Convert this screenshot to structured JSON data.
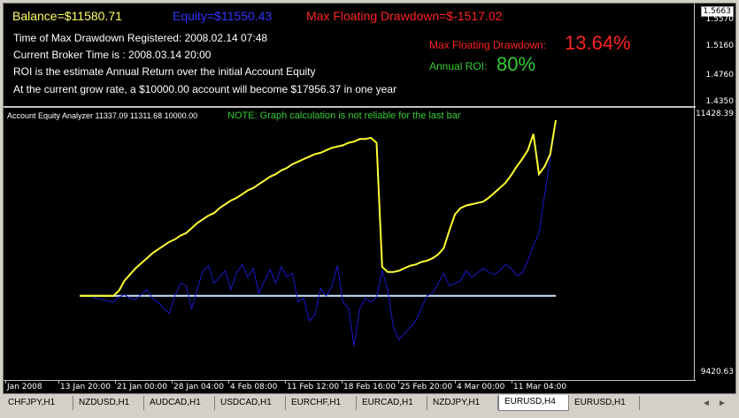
{
  "header": {
    "balance": "Balance=$11580.71",
    "equity": "Equity=$11550.43",
    "max_floating_drawdown": "Max Floating Drawdown=$-1517.02",
    "time_max_drawdown": "Time of Max Drawdown Registered: 2008.02.14 07:48",
    "broker_time": "Current Broker Time is : 2008.03.14 20:00",
    "roi_note": "ROI is the estimate Annual Return over the initial Account Equity",
    "grow_note": "At the current grow rate, a $10000.00 account will become $17956.37 in one year",
    "drawdown_pct_label": "Max Floating Drawdown:",
    "drawdown_pct_value": "13.64%",
    "roi_label": "Annual ROI:",
    "roi_value": "80%"
  },
  "price_scale_top": [
    "1.5663",
    "1.5570",
    "1.5160",
    "1.4760",
    "1.4350"
  ],
  "price_scale_bottom": [
    "11428.39",
    "9420.63"
  ],
  "indicator": {
    "label": "Account Equity Analyzer 11337.09 11311.68 10000.00",
    "note": "NOTE: Graph calculation is not reliable for the last bar"
  },
  "time_axis": [
    "Jan 2008",
    "13 Jan 20:00",
    "21 Jan 00:00",
    "28 Jan 04:00",
    "4 Feb 08:00",
    "11 Feb 12:00",
    "18 Feb 16:00",
    "25 Feb 20:00",
    "4 Mar 00:00",
    "11 Mar 04:00"
  ],
  "colors": {
    "balance_text": "#ffff66",
    "equity_text": "#3333ff",
    "drawdown_text": "#ff2222",
    "roi_text": "#33cc33",
    "balance_line": "#ffff33",
    "equity_line": "#1a1acc",
    "baseline": "#cce6ff"
  },
  "chart_data": {
    "type": "line",
    "y_range": [
      9420.63,
      11428.39
    ],
    "baseline": 10000.0,
    "series": [
      {
        "values": [
          10000,
          10000,
          10000,
          10000,
          10000,
          10000,
          10000,
          10040,
          10120,
          10170,
          10220,
          10260,
          10300,
          10340,
          10370,
          10400,
          10430,
          10450,
          10480,
          10500,
          10540,
          10580,
          10610,
          10640,
          10660,
          10700,
          10730,
          10760,
          10780,
          10810,
          10840,
          10860,
          10890,
          10920,
          10950,
          10970,
          11000,
          11020,
          11050,
          11070,
          11090,
          11110,
          11130,
          11140,
          11160,
          11180,
          11190,
          11200,
          11220,
          11230,
          11250,
          11250,
          11260,
          11220,
          10230,
          10190,
          10190,
          10200,
          10220,
          10240,
          10250,
          10270,
          10280,
          10300,
          10330,
          10380,
          10520,
          10650,
          10700,
          10720,
          10730,
          10740,
          10750,
          10780,
          10820,
          10860,
          10900,
          10960,
          11030,
          11090,
          11160,
          11290,
          10970,
          11030,
          11130,
          11400
        ]
      },
      {
        "values": [
          10000,
          10000,
          10000,
          9980,
          9970,
          9960,
          9950,
          9990,
          10010,
          9980,
          9970,
          10010,
          10050,
          9980,
          9950,
          9900,
          9860,
          10000,
          10100,
          10080,
          9900,
          10050,
          10200,
          10240,
          10100,
          10150,
          10200,
          10050,
          10180,
          10250,
          10150,
          10220,
          10020,
          10120,
          10210,
          10100,
          10230,
          10150,
          10180,
          9950,
          9980,
          9800,
          9850,
          10060,
          10000,
          10070,
          10240,
          9950,
          9900,
          9600,
          9900,
          9980,
          9950,
          9990,
          10200,
          10050,
          9750,
          9650,
          9700,
          9750,
          9800,
          9900,
          10000,
          10020,
          10100,
          10180,
          10080,
          10100,
          10120,
          10200,
          10150,
          10180,
          10220,
          10190,
          10170,
          10200,
          10250,
          10220,
          10160,
          10180,
          10280,
          10400,
          10500,
          10800,
          11100,
          11400
        ]
      }
    ]
  },
  "tabs": [
    "CHFJPY,H1",
    "NZDUSD,H1",
    "AUDCAD,H1",
    "USDCAD,H1",
    "EURCHF,H1",
    "EURCAD,H1",
    "NZDJPY,H1",
    "EURUSD,H4",
    "EURUSD,H1"
  ],
  "active_tab": "EURUSD,H4"
}
